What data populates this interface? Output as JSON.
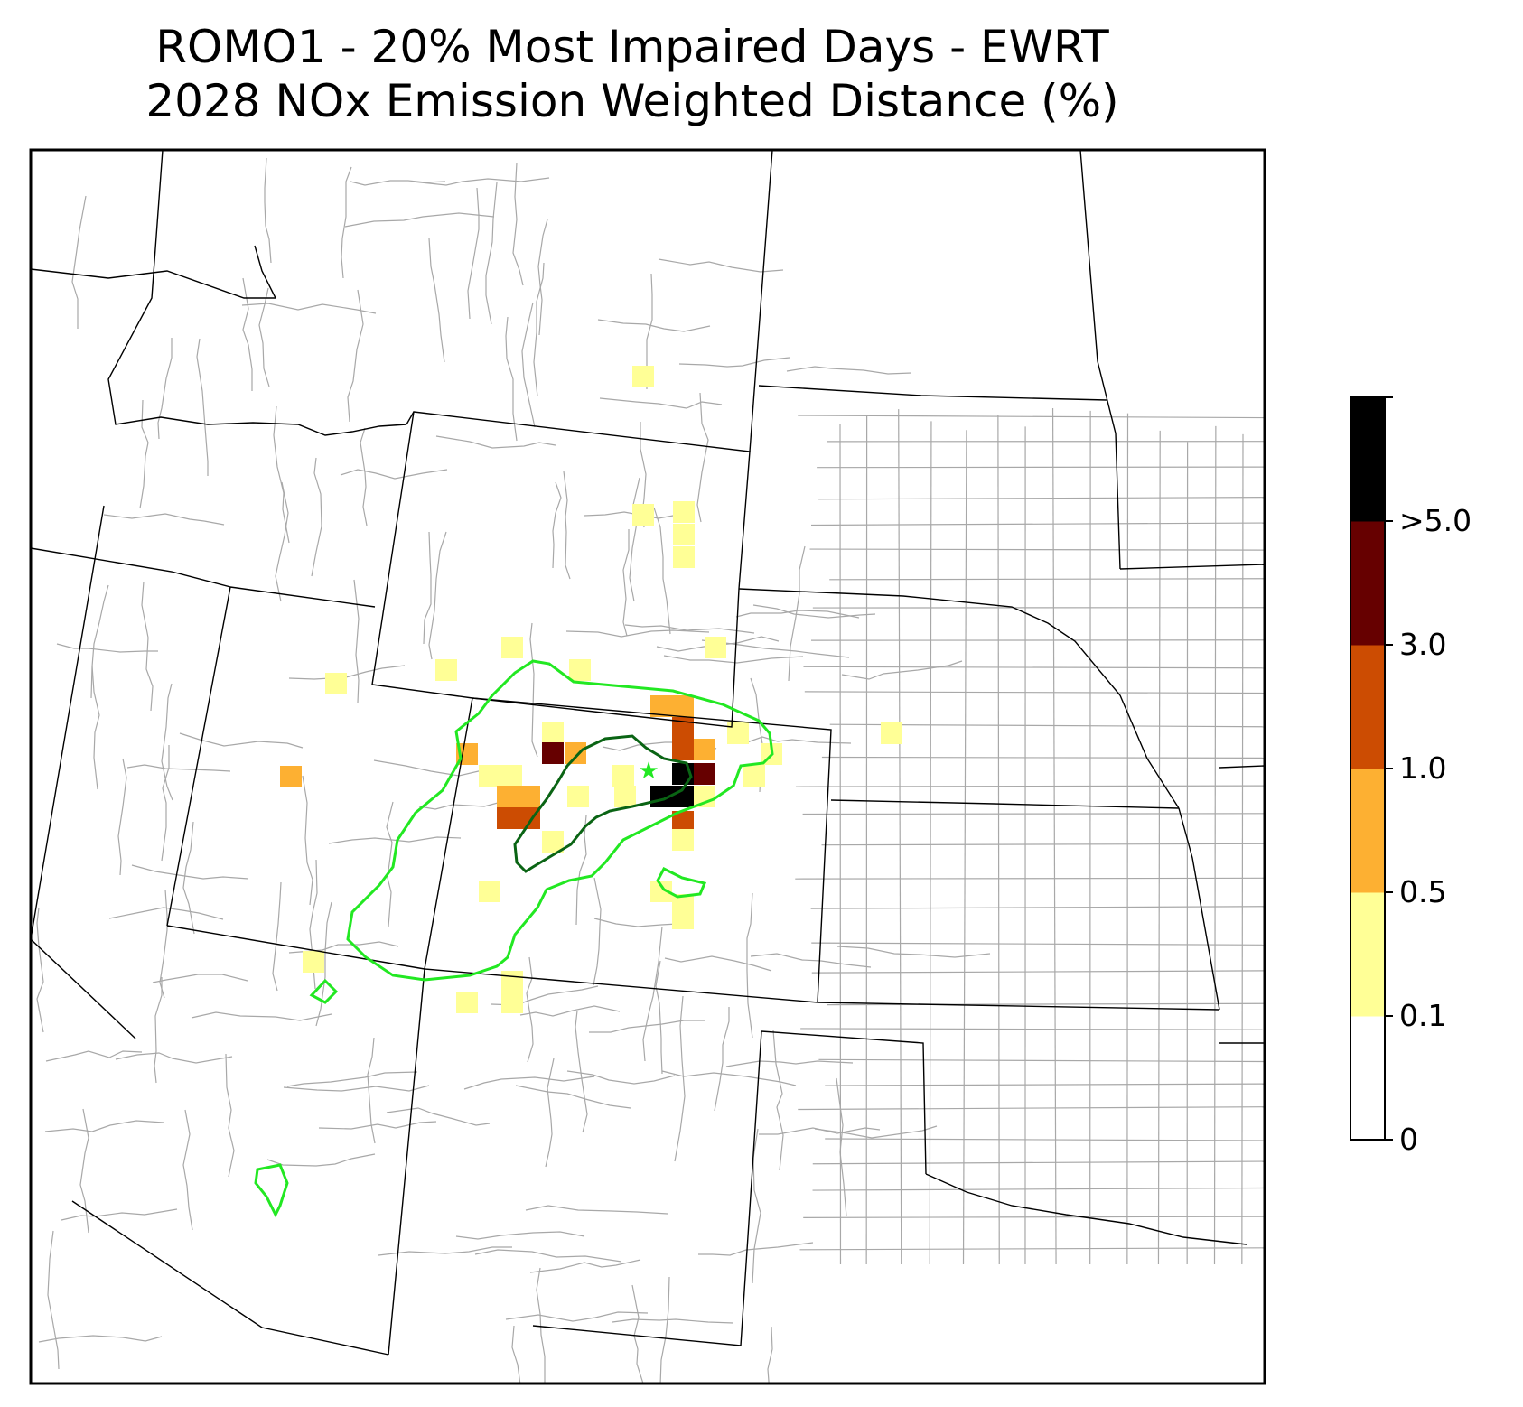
{
  "title": {
    "line1": "ROMO1 - 20% Most Impaired Days - EWRT",
    "line2": "2028 NOx Emission Weighted Distance (%)"
  },
  "colorbar": {
    "ticks": [
      "0",
      "0.1",
      "0.5",
      "1.0",
      "3.0",
      ">5.0"
    ],
    "bins": [
      {
        "range": "0-0.1",
        "color": "#ffffff"
      },
      {
        "range": "0.1-0.5",
        "color": "#ffff96"
      },
      {
        "range": "0.5-1.0",
        "color": "#fdb032"
      },
      {
        "range": "1.0-3.0",
        "color": "#cc4c02"
      },
      {
        "range": "3.0-5.0",
        "color": "#660000"
      },
      {
        "range": ">5.0",
        "color": "#000000"
      }
    ]
  },
  "colors": {
    "contour_outer": "#22e822",
    "contour_inner": "#0a6414",
    "state_lines": "#000000",
    "county_lines": "#a8a8a8",
    "site_marker": "#22e822"
  },
  "map_features": {
    "site_marker_icon": "star-icon",
    "region": "Western and Central United States, state and county boundaries"
  }
}
